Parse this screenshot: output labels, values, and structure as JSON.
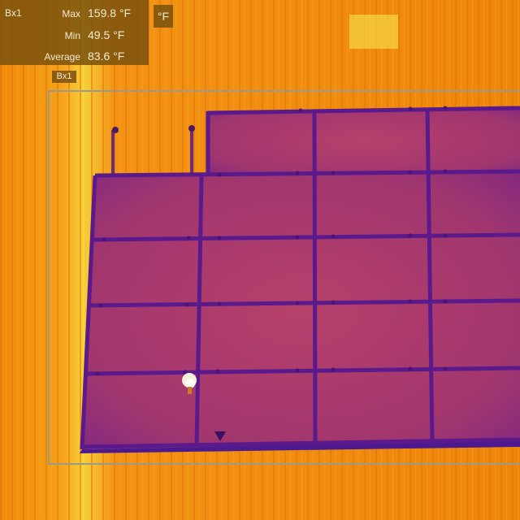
{
  "measurement": {
    "box_name": "Bx1",
    "rows": [
      {
        "label": "Max",
        "value": "159.8 °F"
      },
      {
        "label": "Min",
        "value": "49.5 °F"
      },
      {
        "label": "Average",
        "value": "83.6 °F"
      }
    ],
    "unit": "°F",
    "box_tag": "Bx1"
  },
  "colors": {
    "roof_hot": "#f08c0a",
    "roof_glow": "#f5c52a",
    "panel_surface": "#a2356b",
    "panel_frame": "#5a1a8c",
    "overlay_bg": "#7a520c",
    "roi_border": "#9b9b8c"
  }
}
